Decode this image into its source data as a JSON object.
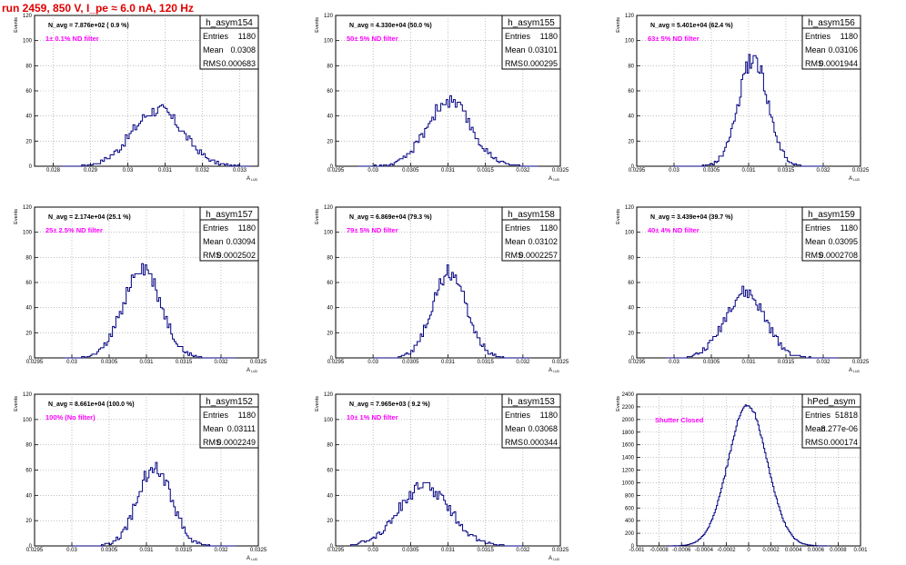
{
  "header": {
    "title": "run 2459,   850 V, I_pe ≈ 6.0 nA, 120 Hz"
  },
  "colors": {
    "hist": "#000080",
    "filter_label": "#ff00ff",
    "title": "#e00000",
    "grid": "#9a9a9a"
  },
  "chart_data": [
    {
      "type": "histogram",
      "title": "h_asym154",
      "ylabel": "Events",
      "xlabel": "A",
      "note": "N_avg = 7.876e+02 ( 0.9 %)",
      "filter_label": "1± 0.1% ND filter",
      "stats": {
        "Entries": "1180",
        "Mean": "0.0308",
        "RMS": "0.000683"
      },
      "xlim": [
        0.0275,
        0.0335
      ],
      "ylim": [
        0,
        120
      ],
      "xticks": [
        0.028,
        0.029,
        0.03,
        0.031,
        0.032,
        0.033
      ],
      "xtick_labels": [
        "0.028",
        "0.029",
        "0.03",
        "0.031",
        "0.032",
        "0.033"
      ],
      "yticks": [
        0,
        20,
        40,
        60,
        80,
        100,
        120
      ],
      "ytick_labels": [
        "0",
        "20",
        "40",
        "60",
        "80",
        "100",
        "120"
      ],
      "peak": 45,
      "mean": 0.0308,
      "sigma": 0.00068,
      "bins": {
        "start": 0.0282,
        "end": 0.0333,
        "count": 100
      }
    },
    {
      "type": "histogram",
      "title": "h_asym155",
      "ylabel": "Events",
      "xlabel": "A",
      "note": "N_avg = 4.330e+04 (50.0 %)",
      "filter_label": "50± 5% ND filter",
      "stats": {
        "Entries": "1180",
        "Mean": "0.03101",
        "RMS": "0.000295"
      },
      "xlim": [
        0.0295,
        0.0325
      ],
      "ylim": [
        0,
        120
      ],
      "xticks": [
        0.0295,
        0.03,
        0.0305,
        0.031,
        0.0315,
        0.032,
        0.0325
      ],
      "xtick_labels": [
        "0.0295",
        "0.03",
        "0.0305",
        "0.031",
        "0.0315",
        "0.032",
        "0.0325"
      ],
      "yticks": [
        0,
        20,
        40,
        60,
        80,
        100,
        120
      ],
      "ytick_labels": [
        "0",
        "20",
        "40",
        "60",
        "80",
        "100",
        "120"
      ],
      "peak": 52,
      "mean": 0.03101,
      "sigma": 0.000295,
      "bins": {
        "start": 0.0298,
        "end": 0.0322,
        "count": 100
      }
    },
    {
      "type": "histogram",
      "title": "h_asym156",
      "ylabel": "Events",
      "xlabel": "A",
      "note": "N_avg = 5.401e+04 (62.4 %)",
      "filter_label": "63± 5% ND filter",
      "stats": {
        "Entries": "1180",
        "Mean": "0.03106",
        "RMS": "0.0001944"
      },
      "xlim": [
        0.0295,
        0.0325
      ],
      "ylim": [
        0,
        120
      ],
      "xticks": [
        0.0295,
        0.03,
        0.0305,
        0.031,
        0.0315,
        0.032,
        0.0325
      ],
      "xtick_labels": [
        "0.0295",
        "0.03",
        "0.0305",
        "0.031",
        "0.0315",
        "0.032",
        "0.0325"
      ],
      "yticks": [
        0,
        20,
        40,
        60,
        80,
        100,
        120
      ],
      "ytick_labels": [
        "0",
        "20",
        "40",
        "60",
        "80",
        "100",
        "120"
      ],
      "peak": 86,
      "mean": 0.03106,
      "sigma": 0.000194,
      "bins": {
        "start": 0.03,
        "end": 0.032,
        "count": 100
      }
    },
    {
      "type": "histogram",
      "title": "h_asym157",
      "ylabel": "Events",
      "xlabel": "A",
      "note": "N_avg = 2.174e+04 (25.1 %)",
      "filter_label": "25± 2.5% ND filter",
      "stats": {
        "Entries": "1180",
        "Mean": "0.03094",
        "RMS": "0.0002502"
      },
      "xlim": [
        0.0295,
        0.0325
      ],
      "ylim": [
        0,
        120
      ],
      "xticks": [
        0.0295,
        0.03,
        0.0305,
        0.031,
        0.0315,
        0.032,
        0.0325
      ],
      "xtick_labels": [
        "0.0295",
        "0.03",
        "0.0305",
        "0.031",
        "0.0315",
        "0.032",
        "0.0325"
      ],
      "yticks": [
        0,
        20,
        40,
        60,
        80,
        100,
        120
      ],
      "ytick_labels": [
        "0",
        "20",
        "40",
        "60",
        "80",
        "100",
        "120"
      ],
      "peak": 72,
      "mean": 0.03094,
      "sigma": 0.00025,
      "bins": {
        "start": 0.0299,
        "end": 0.0322,
        "count": 100
      }
    },
    {
      "type": "histogram",
      "title": "h_asym158",
      "ylabel": "Events",
      "xlabel": "A",
      "note": "N_avg = 6.869e+04 (79.3 %)",
      "filter_label": "79± 5% ND filter",
      "stats": {
        "Entries": "1180",
        "Mean": "0.03102",
        "RMS": "0.0002257"
      },
      "xlim": [
        0.0295,
        0.0325
      ],
      "ylim": [
        0,
        120
      ],
      "xticks": [
        0.0295,
        0.03,
        0.0305,
        0.031,
        0.0315,
        0.032,
        0.0325
      ],
      "xtick_labels": [
        "0.0295",
        "0.03",
        "0.0305",
        "0.031",
        "0.0315",
        "0.032",
        "0.0325"
      ],
      "yticks": [
        0,
        20,
        40,
        60,
        80,
        100,
        120
      ],
      "ytick_labels": [
        "0",
        "20",
        "40",
        "60",
        "80",
        "100",
        "120"
      ],
      "peak": 68,
      "mean": 0.03102,
      "sigma": 0.000226,
      "bins": {
        "start": 0.03,
        "end": 0.0321,
        "count": 100
      }
    },
    {
      "type": "histogram",
      "title": "h_asym159",
      "ylabel": "Events",
      "xlabel": "A",
      "note": "N_avg = 3.439e+04 (39.7 %)",
      "filter_label": "40± 4% ND filter",
      "stats": {
        "Entries": "1180",
        "Mean": "0.03095",
        "RMS": "0.0002708"
      },
      "xlim": [
        0.0295,
        0.0325
      ],
      "ylim": [
        0,
        120
      ],
      "xticks": [
        0.0295,
        0.03,
        0.0305,
        0.031,
        0.0315,
        0.032,
        0.0325
      ],
      "xtick_labels": [
        "0.0295",
        "0.03",
        "0.0305",
        "0.031",
        "0.0315",
        "0.032",
        "0.0325"
      ],
      "yticks": [
        0,
        20,
        40,
        60,
        80,
        100,
        120
      ],
      "ytick_labels": [
        "0",
        "20",
        "40",
        "60",
        "80",
        "100",
        "120"
      ],
      "peak": 52,
      "mean": 0.03095,
      "sigma": 0.00027,
      "bins": {
        "start": 0.0299,
        "end": 0.0322,
        "count": 100
      }
    },
    {
      "type": "histogram",
      "title": "h_asym152",
      "ylabel": "Events",
      "xlabel": "A",
      "note": "N_avg = 8.661e+04 (100.0 %)",
      "filter_label": "100% (No filter)",
      "stats": {
        "Entries": "1180",
        "Mean": "0.03111",
        "RMS": "0.0002249"
      },
      "xlim": [
        0.0295,
        0.0325
      ],
      "ylim": [
        0,
        120
      ],
      "xticks": [
        0.0295,
        0.03,
        0.0305,
        0.031,
        0.0315,
        0.032,
        0.0325
      ],
      "xtick_labels": [
        "0.0295",
        "0.03",
        "0.0305",
        "0.031",
        "0.0315",
        "0.032",
        "0.0325"
      ],
      "yticks": [
        0,
        20,
        40,
        60,
        80,
        100,
        120
      ],
      "ytick_labels": [
        "0",
        "20",
        "40",
        "60",
        "80",
        "100",
        "120"
      ],
      "peak": 64,
      "mean": 0.03111,
      "sigma": 0.000225,
      "bins": {
        "start": 0.03,
        "end": 0.0322,
        "count": 100
      }
    },
    {
      "type": "histogram",
      "title": "h_asym153",
      "ylabel": "Events",
      "xlabel": "A",
      "note": "N_avg = 7.965e+03 ( 9.2 %)",
      "filter_label": "10± 1% ND filter",
      "stats": {
        "Entries": "1180",
        "Mean": "0.03068",
        "RMS": "0.000344"
      },
      "xlim": [
        0.0295,
        0.0325
      ],
      "ylim": [
        0,
        120
      ],
      "xticks": [
        0.0295,
        0.03,
        0.0305,
        0.031,
        0.0315,
        0.032,
        0.0325
      ],
      "xtick_labels": [
        "0.0295",
        "0.03",
        "0.0305",
        "0.031",
        "0.0315",
        "0.032",
        "0.0325"
      ],
      "yticks": [
        0,
        20,
        40,
        60,
        80,
        100,
        120
      ],
      "ytick_labels": [
        "0",
        "20",
        "40",
        "60",
        "80",
        "100",
        "120"
      ],
      "peak": 47,
      "mean": 0.03068,
      "sigma": 0.000344,
      "bins": {
        "start": 0.0297,
        "end": 0.032,
        "count": 100
      }
    },
    {
      "type": "histogram",
      "title": "hPed_asym",
      "ylabel": "Events",
      "xlabel": "",
      "note": "",
      "filter_label": "Shutter Closed",
      "stats": {
        "Entries": "51818",
        "Mean": "-8.277e-06",
        "RMS": "0.000174"
      },
      "xlim": [
        -0.001,
        0.001
      ],
      "ylim": [
        0,
        2400
      ],
      "xticks": [
        -0.001,
        -0.0008,
        -0.0006,
        -0.0004,
        -0.0002,
        0,
        0.0002,
        0.0004,
        0.0006,
        0.0008,
        0.001
      ],
      "xtick_labels": [
        "-0.001",
        "-0.0008",
        "-0.0006",
        "-0.0004",
        "-0.0002",
        "0",
        "0.0002",
        "0.0004",
        "0.0006",
        "0.0008",
        "0.001"
      ],
      "yticks": [
        0,
        200,
        400,
        600,
        800,
        1000,
        1200,
        1400,
        1600,
        1800,
        2000,
        2200,
        2400
      ],
      "ytick_labels": [
        "0",
        "200",
        "400",
        "600",
        "800",
        "1000",
        "1200",
        "1400",
        "1600",
        "1800",
        "2000",
        "2200",
        "2400"
      ],
      "peak": 2230,
      "mean": -8.3e-06,
      "sigma": 0.000174,
      "bins": {
        "start": -0.00072,
        "end": 0.00072,
        "count": 140
      }
    }
  ]
}
